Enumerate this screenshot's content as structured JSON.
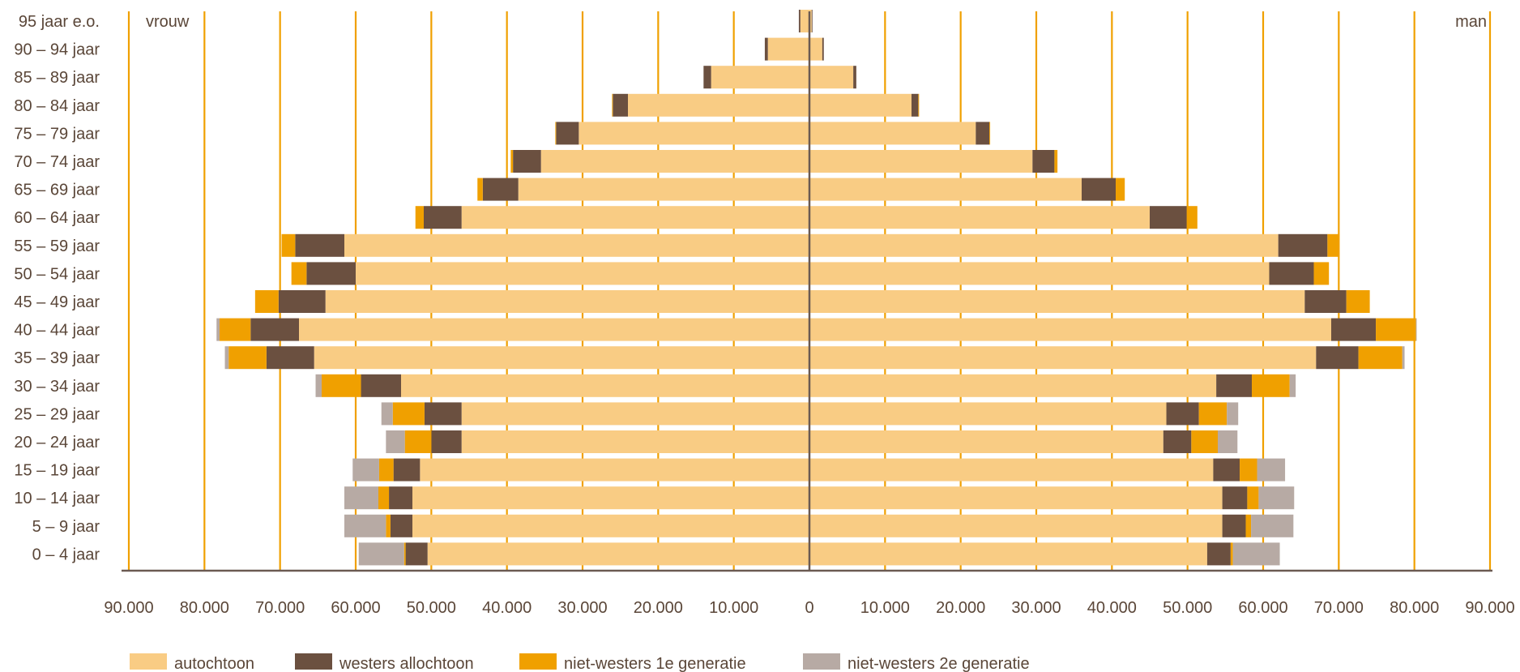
{
  "chart_data": {
    "type": "bar",
    "subtype": "population-pyramid (stacked horizontal, diverging)",
    "left_label": "vrouw",
    "right_label": "man",
    "categories": [
      "95 jaar e.o.",
      "90 – 94 jaar",
      "85 – 89 jaar",
      "80 – 84 jaar",
      "75 – 79 jaar",
      "70 – 74 jaar",
      "65 – 69 jaar",
      "60 – 64 jaar",
      "55 – 59 jaar",
      "50 – 54 jaar",
      "45 – 49 jaar",
      "40 – 44 jaar",
      "35 – 39 jaar",
      "30 – 34 jaar",
      "25 – 29 jaar",
      "20 – 24 jaar",
      "15 – 19 jaar",
      "10 – 14 jaar",
      "5 – 9 jaar",
      "0 – 4 jaar"
    ],
    "x_tick_labels": [
      "90.000",
      "80.000",
      "70.000",
      "60.000",
      "50.000",
      "40.000",
      "30.000",
      "20.000",
      "10.000",
      "0",
      "10.000",
      "20.000",
      "30.000",
      "40.000",
      "50.000",
      "60.000",
      "70.000",
      "80.000",
      "90.000"
    ],
    "xlim": [
      -90000,
      90000
    ],
    "grid": "vertical",
    "legend_position": "bottom",
    "colors": {
      "autochtoon": "#f9cc84",
      "westers allochtoon": "#6b5040",
      "niet-westers 1e generatie": "#f0a000",
      "niet-westers 2e generatie": "#b7aaa4",
      "gridline": "#f0a000",
      "axis": "#6b5a52",
      "text": "#5a4638"
    },
    "series": [
      {
        "name": "autochtoon",
        "women": [
          1200,
          5500,
          13000,
          24000,
          30500,
          35500,
          38500,
          46000,
          61500,
          60000,
          64000,
          67500,
          65500,
          54000,
          46000,
          46000,
          51500,
          52500,
          52500,
          50500
        ],
        "men": [
          300,
          1700,
          5800,
          13500,
          22000,
          29500,
          36000,
          45000,
          62000,
          60800,
          65500,
          69000,
          67000,
          53800,
          47200,
          46800,
          53400,
          54600,
          54600,
          52600
        ]
      },
      {
        "name": "westers allochtoon",
        "women": [
          200,
          400,
          1000,
          2000,
          3000,
          3700,
          4700,
          5000,
          6500,
          6500,
          6200,
          6400,
          6300,
          5300,
          4900,
          4000,
          3500,
          3100,
          2900,
          2900
        ],
        "men": [
          100,
          200,
          400,
          900,
          1800,
          2900,
          4500,
          4900,
          6500,
          5900,
          5500,
          5900,
          5600,
          4700,
          4300,
          3700,
          3500,
          3300,
          3100,
          3100
        ]
      },
      {
        "name": "niet-westers 1e generatie",
        "women": [
          0,
          0,
          0,
          100,
          100,
          300,
          700,
          1100,
          1800,
          2000,
          3100,
          4100,
          5000,
          5200,
          4200,
          3500,
          1900,
          1400,
          600,
          200
        ],
        "men": [
          0,
          0,
          0,
          100,
          100,
          400,
          1200,
          1400,
          1600,
          2000,
          3100,
          5300,
          5800,
          5000,
          3700,
          3500,
          2300,
          1500,
          700,
          300
        ]
      },
      {
        "name": "niet-westers 2e generatie",
        "women": [
          0,
          0,
          0,
          0,
          0,
          0,
          0,
          0,
          0,
          0,
          0,
          400,
          500,
          800,
          1500,
          2500,
          3500,
          4500,
          5500,
          6000
        ],
        "men": [
          0,
          0,
          0,
          0,
          0,
          0,
          0,
          0,
          0,
          0,
          0,
          100,
          300,
          800,
          1500,
          2600,
          3700,
          4700,
          5600,
          6200
        ]
      }
    ]
  }
}
